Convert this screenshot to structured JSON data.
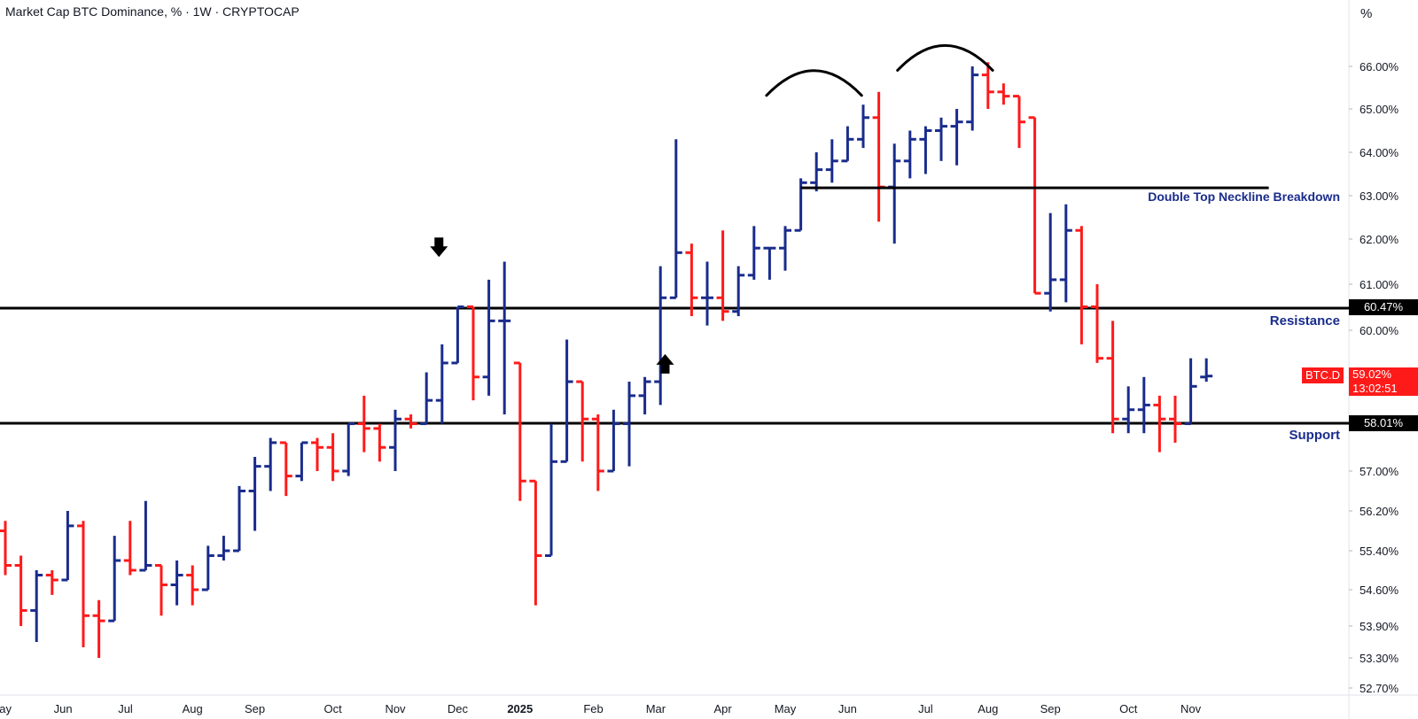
{
  "title": "Market Cap BTC Dominance, % · 1W · CRYPTOCAP",
  "unit_label": "%",
  "annotations": {
    "neckline": "Double Top Neckline Breakdown",
    "resistance": "Resistance",
    "support": "Support"
  },
  "price_badges": {
    "resistance": "60.47%",
    "support": "58.01%",
    "symbol": "BTC.D",
    "last": "59.02%",
    "countdown": "13:02:51"
  },
  "colors": {
    "up": "#1a2c8c",
    "down": "#ff1a1a",
    "level_line": "#000000",
    "axis_text": "#131722"
  },
  "chart_data": {
    "type": "ohlc",
    "ylim": [
      52.7,
      66.7
    ],
    "y_ticks": [
      {
        "value": 66.0,
        "label": "66.00%"
      },
      {
        "value": 65.0,
        "label": "65.00%"
      },
      {
        "value": 64.0,
        "label": "64.00%"
      },
      {
        "value": 63.0,
        "label": "63.00%"
      },
      {
        "value": 62.0,
        "label": "62.00%"
      },
      {
        "value": 61.0,
        "label": "61.00%"
      },
      {
        "value": 60.0,
        "label": "60.00%"
      },
      {
        "value": 57.0,
        "label": "57.00%"
      },
      {
        "value": 56.2,
        "label": "56.20%"
      },
      {
        "value": 55.4,
        "label": "55.40%"
      },
      {
        "value": 54.6,
        "label": "54.60%"
      },
      {
        "value": 53.9,
        "label": "53.90%"
      },
      {
        "value": 53.3,
        "label": "53.30%"
      },
      {
        "value": 52.7,
        "label": "52.70%"
      }
    ],
    "x_ticks": [
      {
        "label": "May",
        "week": -0.3
      },
      {
        "label": "Jun",
        "week": 3.7
      },
      {
        "label": "Jul",
        "week": 7.7
      },
      {
        "label": "Aug",
        "week": 12.0
      },
      {
        "label": "Sep",
        "week": 16.0
      },
      {
        "label": "Oct",
        "week": 21.0
      },
      {
        "label": "Nov",
        "week": 25.0
      },
      {
        "label": "Dec",
        "week": 29.0
      },
      {
        "label": "2025",
        "week": 33.0,
        "bold": true
      },
      {
        "label": "Feb",
        "week": 37.7
      },
      {
        "label": "Mar",
        "week": 41.7
      },
      {
        "label": "Apr",
        "week": 46.0
      },
      {
        "label": "May",
        "week": 50.0
      },
      {
        "label": "Jun",
        "week": 54.0
      },
      {
        "label": "Jul",
        "week": 59.0
      },
      {
        "label": "Aug",
        "week": 63.0
      },
      {
        "label": "Sep",
        "week": 67.0
      },
      {
        "label": "Oct",
        "week": 72.0
      },
      {
        "label": "Nov",
        "week": 76.0
      }
    ],
    "levels": [
      {
        "name": "Resistance",
        "value": 60.47
      },
      {
        "name": "Support",
        "value": 58.01
      }
    ],
    "neckline": {
      "value": 63.18,
      "from_week": 51.0,
      "to_week": 81.0
    },
    "arcs": [
      {
        "from_week": 48.8,
        "to_week": 54.9,
        "peak": 65.9
      },
      {
        "from_week": 57.2,
        "to_week": 63.3,
        "peak": 66.5
      }
    ],
    "arrows": [
      {
        "direction": "down",
        "week": 27.8,
        "value": 61.8
      },
      {
        "direction": "up",
        "week": 42.3,
        "value": 59.3
      }
    ],
    "candles": [
      [
        55.8,
        56.0,
        54.9,
        55.1
      ],
      [
        55.1,
        55.3,
        53.9,
        54.2
      ],
      [
        54.2,
        55.0,
        53.6,
        54.9
      ],
      [
        54.9,
        55.0,
        54.5,
        54.8
      ],
      [
        54.8,
        56.2,
        54.8,
        55.9
      ],
      [
        55.9,
        56.0,
        53.5,
        54.1
      ],
      [
        54.1,
        54.4,
        53.3,
        54.0
      ],
      [
        54.0,
        55.7,
        54.0,
        55.2
      ],
      [
        55.2,
        56.0,
        54.9,
        55.0
      ],
      [
        55.0,
        56.4,
        55.0,
        55.1
      ],
      [
        55.1,
        55.1,
        54.1,
        54.7
      ],
      [
        54.7,
        55.2,
        54.3,
        54.9
      ],
      [
        54.9,
        55.1,
        54.3,
        54.6
      ],
      [
        54.6,
        55.5,
        54.6,
        55.3
      ],
      [
        55.3,
        55.7,
        55.2,
        55.4
      ],
      [
        55.4,
        56.7,
        55.4,
        56.6
      ],
      [
        56.6,
        57.3,
        55.8,
        57.1
      ],
      [
        57.1,
        57.7,
        56.6,
        57.6
      ],
      [
        57.6,
        57.6,
        56.5,
        56.9
      ],
      [
        56.9,
        57.6,
        56.8,
        57.6
      ],
      [
        57.6,
        57.7,
        57.0,
        57.5
      ],
      [
        57.5,
        57.8,
        56.8,
        57.0
      ],
      [
        57.0,
        58.0,
        56.9,
        58.0
      ],
      [
        58.0,
        58.6,
        57.4,
        57.9
      ],
      [
        57.9,
        58.0,
        57.2,
        57.5
      ],
      [
        57.5,
        58.3,
        57.0,
        58.1
      ],
      [
        58.1,
        58.2,
        57.9,
        58.0
      ],
      [
        58.0,
        59.1,
        58.0,
        58.5
      ],
      [
        58.5,
        59.7,
        58.0,
        59.3
      ],
      [
        59.3,
        60.5,
        59.3,
        60.5
      ],
      [
        60.5,
        60.5,
        58.5,
        59.0
      ],
      [
        59.0,
        61.1,
        58.6,
        60.2
      ],
      [
        60.2,
        61.5,
        58.2,
        60.2
      ],
      [
        59.3,
        59.3,
        56.4,
        56.8
      ],
      [
        56.8,
        56.8,
        54.3,
        55.3
      ],
      [
        55.3,
        58.0,
        55.3,
        57.2
      ],
      [
        57.2,
        59.8,
        57.2,
        58.9
      ],
      [
        58.9,
        58.9,
        57.2,
        58.1
      ],
      [
        58.1,
        58.2,
        56.6,
        57.0
      ],
      [
        57.0,
        58.3,
        57.0,
        58.0
      ],
      [
        58.0,
        58.9,
        57.1,
        58.6
      ],
      [
        58.6,
        59.0,
        58.2,
        58.9
      ],
      [
        58.9,
        61.4,
        58.4,
        60.7
      ],
      [
        60.7,
        64.3,
        60.7,
        61.7
      ],
      [
        61.7,
        61.9,
        60.3,
        60.7
      ],
      [
        60.7,
        61.5,
        60.1,
        60.7
      ],
      [
        60.7,
        62.2,
        60.2,
        60.4
      ],
      [
        60.4,
        61.4,
        60.3,
        61.2
      ],
      [
        61.2,
        62.3,
        61.1,
        61.8
      ],
      [
        61.8,
        61.8,
        61.1,
        61.8
      ],
      [
        61.8,
        62.3,
        61.3,
        62.2
      ],
      [
        62.2,
        63.4,
        62.2,
        63.3
      ],
      [
        63.3,
        64.0,
        63.1,
        63.6
      ],
      [
        63.6,
        64.3,
        63.3,
        63.8
      ],
      [
        63.8,
        64.6,
        63.8,
        64.3
      ],
      [
        64.3,
        65.1,
        64.1,
        64.8
      ],
      [
        64.8,
        65.4,
        62.4,
        63.2
      ],
      [
        63.2,
        64.2,
        61.9,
        63.8
      ],
      [
        63.8,
        64.5,
        63.4,
        64.3
      ],
      [
        64.3,
        64.6,
        63.5,
        64.5
      ],
      [
        64.5,
        64.8,
        63.8,
        64.6
      ],
      [
        64.6,
        65.0,
        63.7,
        64.7
      ],
      [
        64.7,
        66.0,
        64.5,
        65.8
      ],
      [
        65.8,
        66.1,
        65.0,
        65.4
      ],
      [
        65.4,
        65.6,
        65.1,
        65.3
      ],
      [
        65.3,
        65.3,
        64.1,
        64.7
      ],
      [
        64.8,
        64.8,
        60.8,
        60.8
      ],
      [
        60.8,
        62.6,
        60.4,
        61.1
      ],
      [
        61.1,
        62.8,
        60.6,
        62.2
      ],
      [
        62.2,
        62.3,
        59.7,
        60.5
      ],
      [
        60.5,
        61.0,
        59.3,
        59.4
      ],
      [
        59.4,
        60.2,
        57.8,
        58.1
      ],
      [
        58.1,
        58.8,
        57.8,
        58.3
      ],
      [
        58.3,
        59.0,
        57.8,
        58.4
      ],
      [
        58.4,
        58.6,
        57.4,
        58.1
      ],
      [
        58.1,
        58.6,
        57.6,
        58.0
      ],
      [
        58.0,
        59.4,
        58.0,
        58.8
      ],
      [
        59.0,
        59.4,
        58.9,
        59.02
      ]
    ]
  }
}
